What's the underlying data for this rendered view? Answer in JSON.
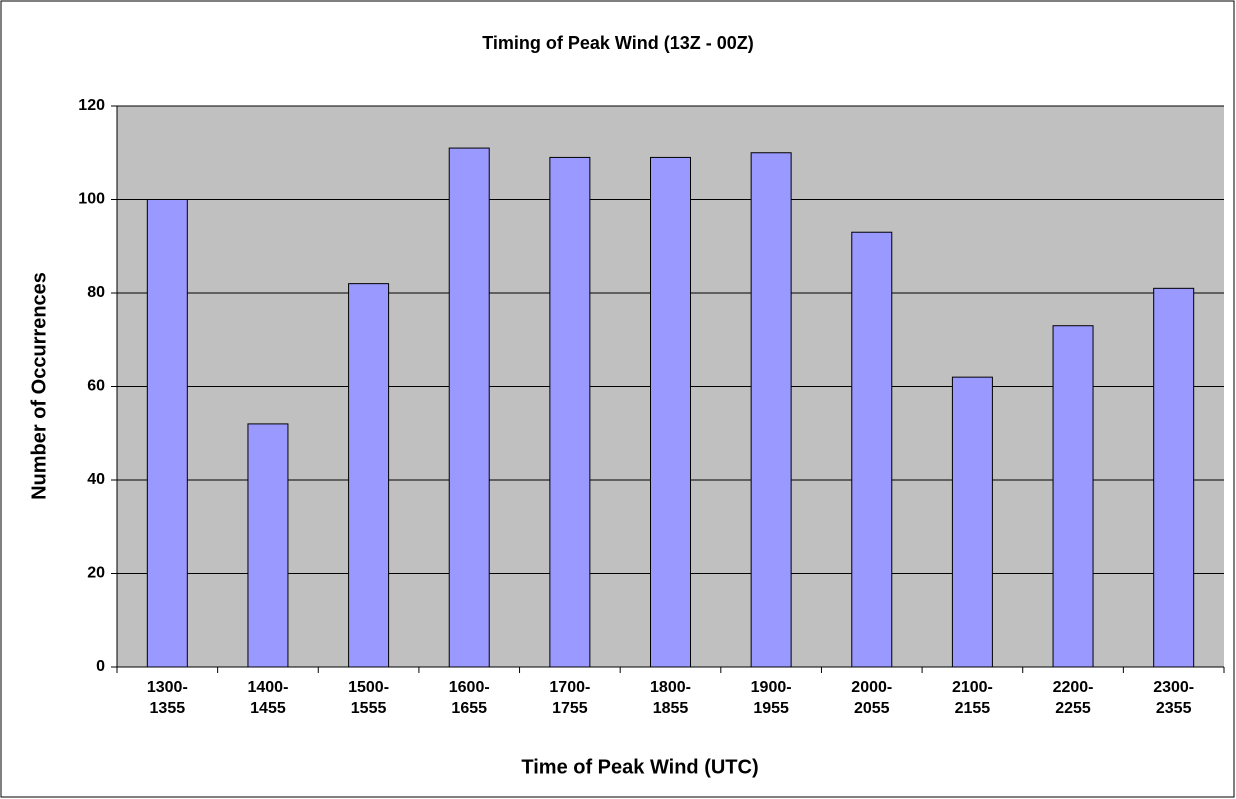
{
  "chart_data": {
    "type": "bar",
    "title": "Timing of Peak Wind (13Z - 00Z)",
    "x_label": "Time of Peak Wind (UTC)",
    "y_label": "Number of Occurrences",
    "categories": [
      "1300-1355",
      "1400-1455",
      "1500-1555",
      "1600-1655",
      "1700-1755",
      "1800-1855",
      "1900-1955",
      "2000-2055",
      "2100-2155",
      "2200-2255",
      "2300-2355"
    ],
    "values": [
      100,
      52,
      82,
      111,
      109,
      109,
      110,
      93,
      62,
      73,
      81
    ],
    "color": "#9999ff",
    "ylim": [
      0,
      120
    ],
    "yticks": [
      0,
      20,
      40,
      60,
      80,
      100,
      120
    ],
    "grid": true
  }
}
